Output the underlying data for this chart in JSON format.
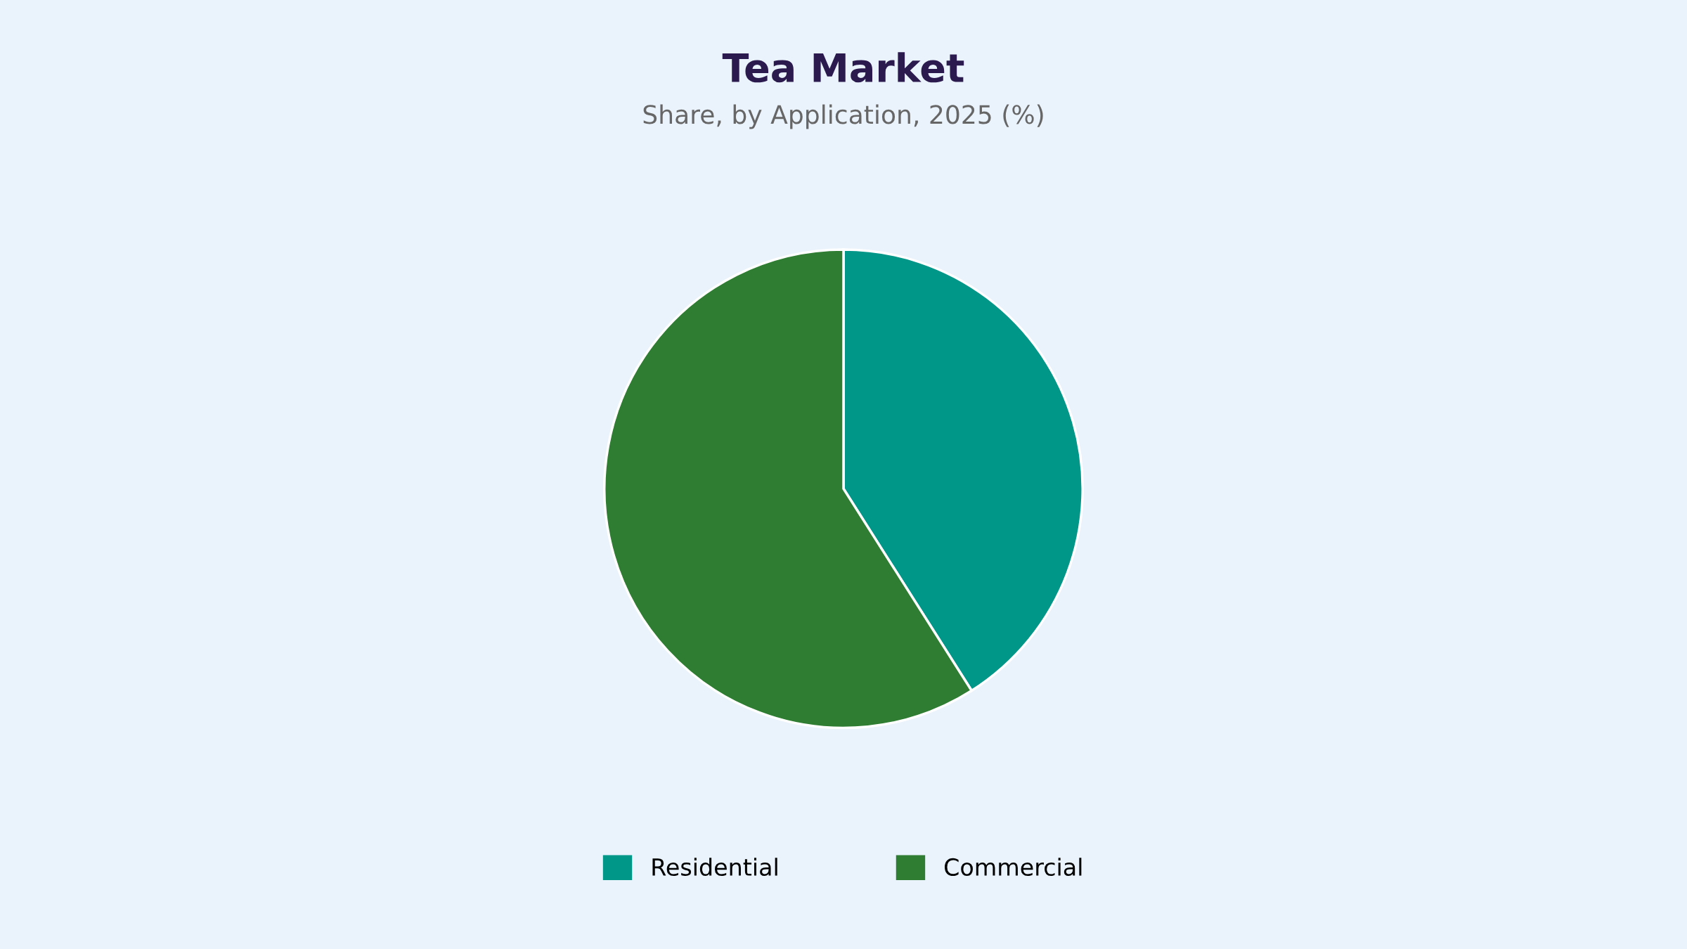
{
  "chart_data": {
    "type": "pie",
    "title": "Tea Market",
    "subtitle": "Share, by Application, 2025 (%)",
    "categories": [
      "Residential",
      "Commercial"
    ],
    "values": [
      41,
      59
    ],
    "colors": [
      "#009688",
      "#2e7d32"
    ],
    "legend": "bottom"
  }
}
